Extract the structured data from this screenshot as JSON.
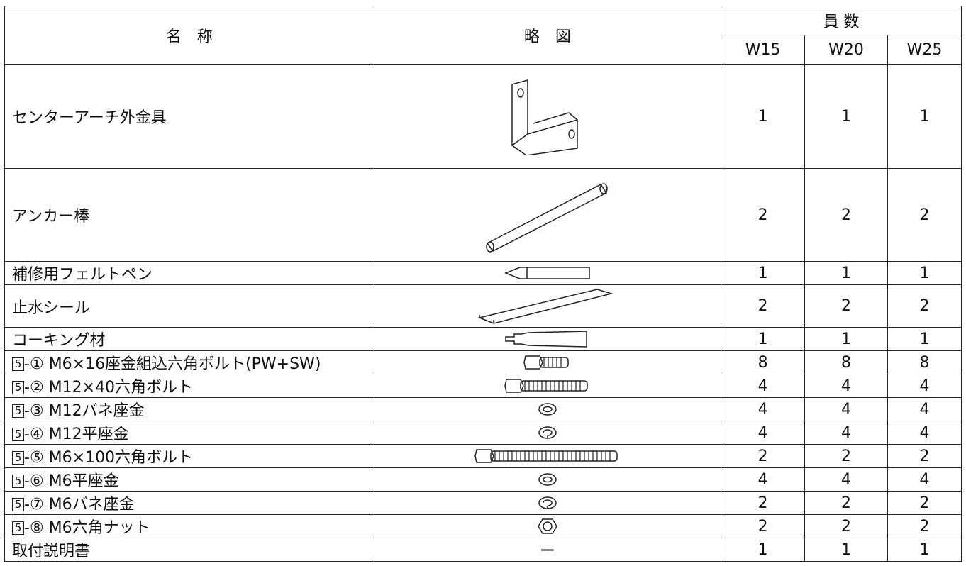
{
  "table": {
    "header": {
      "name": "名　称",
      "diagram": "略　図",
      "count": "員 数",
      "sizes": [
        "W15",
        "W20",
        "W25"
      ]
    },
    "rows": [
      {
        "name": "センターアーチ外金具",
        "counts": [
          1,
          1,
          1
        ]
      },
      {
        "name": "アンカー棒",
        "counts": [
          2,
          2,
          2
        ]
      },
      {
        "name": "補修用フェルトペン",
        "counts": [
          1,
          1,
          1
        ]
      },
      {
        "name": "止水シール",
        "counts": [
          2,
          2,
          2
        ]
      },
      {
        "name": "コーキング材",
        "counts": [
          1,
          1,
          1
        ]
      },
      {
        "box": "5",
        "name": "-① M6×16座金組込六角ボルト(PW+SW)",
        "counts": [
          8,
          8,
          8
        ]
      },
      {
        "box": "5",
        "name": "-② M12×40六角ボルト",
        "counts": [
          4,
          4,
          4
        ]
      },
      {
        "box": "5",
        "name": "-③ M12バネ座金",
        "counts": [
          4,
          4,
          4
        ]
      },
      {
        "box": "5",
        "name": "-④ M12平座金",
        "counts": [
          4,
          4,
          4
        ]
      },
      {
        "box": "5",
        "name": "-⑤ M6×100六角ボルト",
        "counts": [
          2,
          2,
          2
        ]
      },
      {
        "box": "5",
        "name": "-⑥ M6平座金",
        "counts": [
          4,
          4,
          4
        ]
      },
      {
        "box": "5",
        "name": "-⑦ M6バネ座金",
        "counts": [
          2,
          2,
          2
        ]
      },
      {
        "box": "5",
        "name": "-⑧ M6六角ナット",
        "counts": [
          2,
          2,
          2
        ]
      },
      {
        "name": "取付説明書",
        "diagram": "ー",
        "counts": [
          1,
          1,
          1
        ]
      }
    ]
  }
}
